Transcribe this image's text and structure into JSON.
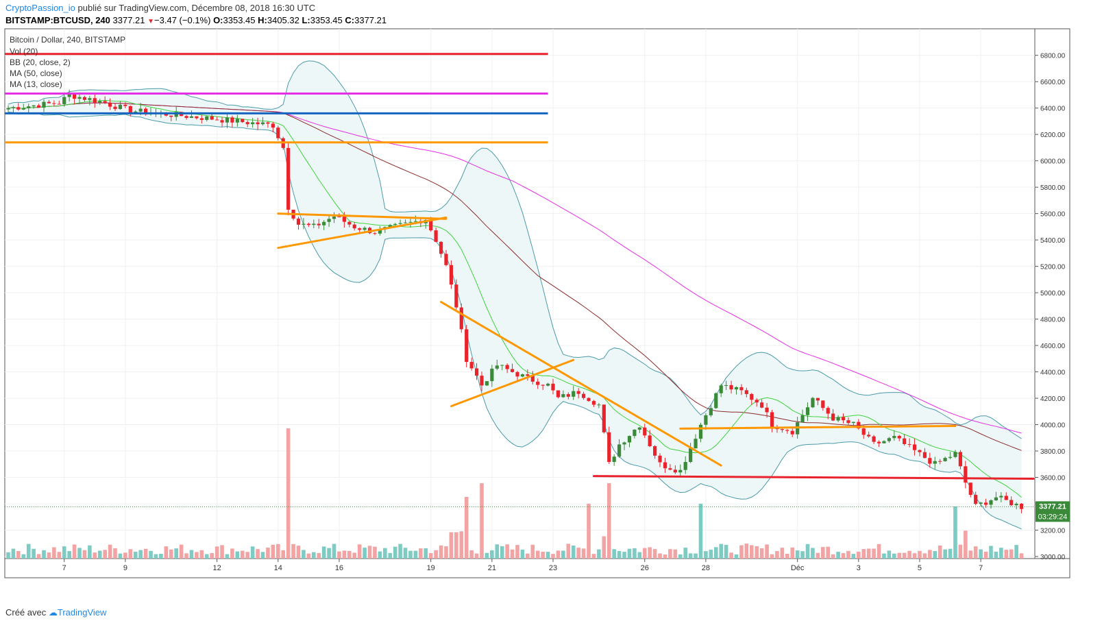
{
  "header": {
    "author": "CryptoPassion_io",
    "published_text": " publié sur TradingView.com, Décembre 08, 2018 16:30 UTC",
    "symbol": "BITSTAMP:BTCUSD, 240",
    "last": "3377.21",
    "change_arrow": "▼",
    "change": "−3.47 (−0.1%)",
    "o_label": "O:",
    "o": "3353.45",
    "h_label": "H:",
    "h": "3405.32",
    "l_label": "L:",
    "l": "3353.45",
    "c_label": "C:",
    "c": "3377.21"
  },
  "legend": {
    "title": "Bitcoin / Dollar, 240, BITSTAMP",
    "items": [
      "Vol (20)",
      "BB (20, close, 2)",
      "MA (50, close)",
      "MA (13, close)"
    ]
  },
  "footer": {
    "created_with": "Créé avec",
    "brand": "TradingView"
  },
  "price_tag": {
    "value": "3377.21",
    "countdown": "03:29:24"
  },
  "colors": {
    "up": "#3a8a3a",
    "down": "#e8232c",
    "vol_up": "#7ecbc4",
    "vol_down": "#f2a3a3",
    "ma13": "#3cd33c",
    "ma50": "#8b2a2a",
    "ma_long": "#e52fe5",
    "bb": "#4a9aa8",
    "bb_fill": "#eef7f8"
  },
  "chart_data": {
    "type": "candlestick",
    "title": "Bitcoin / Dollar, 240, BITSTAMP",
    "ylim": [
      3000,
      6900
    ],
    "y_ticks": [
      3000,
      3200,
      3400,
      3600,
      3800,
      4000,
      4200,
      4400,
      4600,
      4800,
      5000,
      5200,
      5400,
      5600,
      5800,
      6000,
      6200,
      6400,
      6600,
      6800
    ],
    "x_ticks": [
      {
        "label": "7",
        "bar": 11
      },
      {
        "label": "9",
        "bar": 23
      },
      {
        "label": "12",
        "bar": 41
      },
      {
        "label": "14",
        "bar": 53
      },
      {
        "label": "16",
        "bar": 65
      },
      {
        "label": "19",
        "bar": 83
      },
      {
        "label": "21",
        "bar": 95
      },
      {
        "label": "23",
        "bar": 107
      },
      {
        "label": "26",
        "bar": 125
      },
      {
        "label": "28",
        "bar": 137
      },
      {
        "label": "Déc",
        "bar": 155
      },
      {
        "label": "3",
        "bar": 167
      },
      {
        "label": "5",
        "bar": 179
      },
      {
        "label": "7",
        "bar": 191
      }
    ],
    "bar_count": 200,
    "anchors": [
      [
        0,
        6400
      ],
      [
        10,
        6440
      ],
      [
        12,
        6500
      ],
      [
        18,
        6450
      ],
      [
        24,
        6380
      ],
      [
        40,
        6320
      ],
      [
        52,
        6270
      ],
      [
        54,
        6100
      ],
      [
        55,
        5650
      ],
      [
        57,
        5520
      ],
      [
        60,
        5500
      ],
      [
        64,
        5580
      ],
      [
        68,
        5500
      ],
      [
        72,
        5460
      ],
      [
        76,
        5500
      ],
      [
        80,
        5540
      ],
      [
        82,
        5560
      ],
      [
        84,
        5400
      ],
      [
        86,
        5200
      ],
      [
        88,
        4900
      ],
      [
        90,
        4500
      ],
      [
        93,
        4300
      ],
      [
        96,
        4450
      ],
      [
        99,
        4400
      ],
      [
        102,
        4350
      ],
      [
        106,
        4300
      ],
      [
        108,
        4200
      ],
      [
        112,
        4250
      ],
      [
        116,
        4150
      ],
      [
        118,
        3700
      ],
      [
        120,
        3850
      ],
      [
        124,
        4000
      ],
      [
        128,
        3700
      ],
      [
        132,
        3650
      ],
      [
        136,
        4000
      ],
      [
        140,
        4300
      ],
      [
        144,
        4250
      ],
      [
        148,
        4150
      ],
      [
        150,
        4000
      ],
      [
        154,
        3950
      ],
      [
        158,
        4200
      ],
      [
        162,
        4050
      ],
      [
        166,
        4000
      ],
      [
        170,
        3850
      ],
      [
        174,
        3900
      ],
      [
        178,
        3800
      ],
      [
        182,
        3700
      ],
      [
        186,
        3780
      ],
      [
        188,
        3560
      ],
      [
        190,
        3380
      ],
      [
        194,
        3450
      ],
      [
        199,
        3377
      ]
    ],
    "volume_spikes": [
      [
        55,
        0.95
      ],
      [
        90,
        0.45
      ],
      [
        93,
        0.55
      ],
      [
        114,
        0.4
      ],
      [
        118,
        0.55
      ],
      [
        136,
        0.4
      ],
      [
        186,
        0.38
      ]
    ],
    "horizontal_lines": [
      {
        "price": 6810,
        "x_from": 0,
        "x_to": 106,
        "color": "#e8232c"
      },
      {
        "price": 6510,
        "x_from": 0,
        "x_to": 106,
        "color": "#e52fe5"
      },
      {
        "price": 6360,
        "x_from": 0,
        "x_to": 106,
        "color": "#1565c0"
      },
      {
        "price": 6140,
        "x_from": 0,
        "x_to": 106,
        "color": "#ff9800"
      }
    ],
    "trend_lines": [
      {
        "from": [
          53,
          5600
        ],
        "to": [
          86,
          5560
        ],
        "color": "#ff9800"
      },
      {
        "from": [
          53,
          5340
        ],
        "to": [
          86,
          5570
        ],
        "color": "#ff9800"
      },
      {
        "from": [
          85,
          4930
        ],
        "to": [
          140,
          3690
        ],
        "color": "#ff9800"
      },
      {
        "from": [
          87,
          4140
        ],
        "to": [
          111,
          4490
        ],
        "color": "#ff9800"
      },
      {
        "from": [
          132,
          3970
        ],
        "to": [
          186,
          3990
        ],
        "color": "#ff9800"
      },
      {
        "from": [
          115,
          3610
        ],
        "to": [
          210,
          3590
        ],
        "color": "#e8232c"
      }
    ]
  }
}
